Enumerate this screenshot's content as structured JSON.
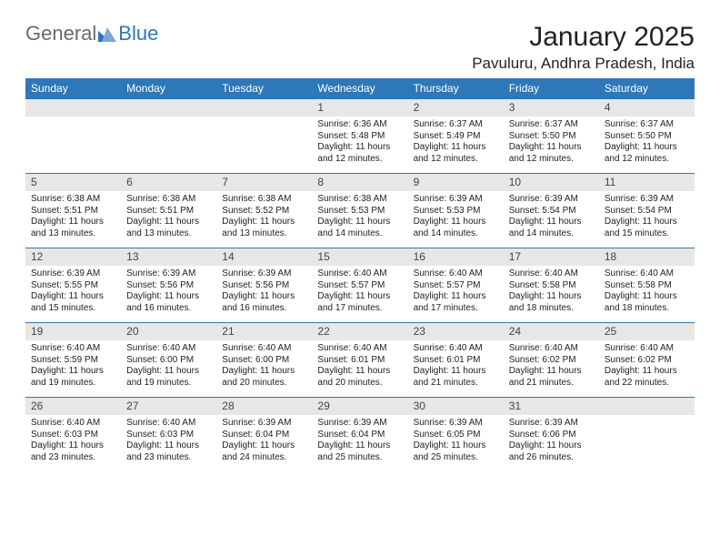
{
  "brand": {
    "general": "General",
    "blue": "Blue"
  },
  "title": "January 2025",
  "location": "Pavuluru, Andhra Pradesh, India",
  "styling": {
    "header_bg": "#2e77b8",
    "header_fg": "#ffffff",
    "daynum_bg": "#e7e7e7",
    "border_color": "#2e77b8",
    "page_bg": "#ffffff",
    "text_color": "#222222",
    "logo_gray": "#6a6a6a",
    "logo_blue": "#2e77b8",
    "month_title_fontsize": 30,
    "location_fontsize": 17,
    "dayheader_fontsize": 12,
    "daynum_fontsize": 12,
    "cell_fontsize": 10
  },
  "day_headers": [
    "Sunday",
    "Monday",
    "Tuesday",
    "Wednesday",
    "Thursday",
    "Friday",
    "Saturday"
  ],
  "weeks": [
    [
      null,
      null,
      null,
      {
        "n": "1",
        "sr": "6:36 AM",
        "ss": "5:48 PM",
        "dl": "11 hours and 12 minutes."
      },
      {
        "n": "2",
        "sr": "6:37 AM",
        "ss": "5:49 PM",
        "dl": "11 hours and 12 minutes."
      },
      {
        "n": "3",
        "sr": "6:37 AM",
        "ss": "5:50 PM",
        "dl": "11 hours and 12 minutes."
      },
      {
        "n": "4",
        "sr": "6:37 AM",
        "ss": "5:50 PM",
        "dl": "11 hours and 12 minutes."
      }
    ],
    [
      {
        "n": "5",
        "sr": "6:38 AM",
        "ss": "5:51 PM",
        "dl": "11 hours and 13 minutes."
      },
      {
        "n": "6",
        "sr": "6:38 AM",
        "ss": "5:51 PM",
        "dl": "11 hours and 13 minutes."
      },
      {
        "n": "7",
        "sr": "6:38 AM",
        "ss": "5:52 PM",
        "dl": "11 hours and 13 minutes."
      },
      {
        "n": "8",
        "sr": "6:38 AM",
        "ss": "5:53 PM",
        "dl": "11 hours and 14 minutes."
      },
      {
        "n": "9",
        "sr": "6:39 AM",
        "ss": "5:53 PM",
        "dl": "11 hours and 14 minutes."
      },
      {
        "n": "10",
        "sr": "6:39 AM",
        "ss": "5:54 PM",
        "dl": "11 hours and 14 minutes."
      },
      {
        "n": "11",
        "sr": "6:39 AM",
        "ss": "5:54 PM",
        "dl": "11 hours and 15 minutes."
      }
    ],
    [
      {
        "n": "12",
        "sr": "6:39 AM",
        "ss": "5:55 PM",
        "dl": "11 hours and 15 minutes."
      },
      {
        "n": "13",
        "sr": "6:39 AM",
        "ss": "5:56 PM",
        "dl": "11 hours and 16 minutes."
      },
      {
        "n": "14",
        "sr": "6:39 AM",
        "ss": "5:56 PM",
        "dl": "11 hours and 16 minutes."
      },
      {
        "n": "15",
        "sr": "6:40 AM",
        "ss": "5:57 PM",
        "dl": "11 hours and 17 minutes."
      },
      {
        "n": "16",
        "sr": "6:40 AM",
        "ss": "5:57 PM",
        "dl": "11 hours and 17 minutes."
      },
      {
        "n": "17",
        "sr": "6:40 AM",
        "ss": "5:58 PM",
        "dl": "11 hours and 18 minutes."
      },
      {
        "n": "18",
        "sr": "6:40 AM",
        "ss": "5:58 PM",
        "dl": "11 hours and 18 minutes."
      }
    ],
    [
      {
        "n": "19",
        "sr": "6:40 AM",
        "ss": "5:59 PM",
        "dl": "11 hours and 19 minutes."
      },
      {
        "n": "20",
        "sr": "6:40 AM",
        "ss": "6:00 PM",
        "dl": "11 hours and 19 minutes."
      },
      {
        "n": "21",
        "sr": "6:40 AM",
        "ss": "6:00 PM",
        "dl": "11 hours and 20 minutes."
      },
      {
        "n": "22",
        "sr": "6:40 AM",
        "ss": "6:01 PM",
        "dl": "11 hours and 20 minutes."
      },
      {
        "n": "23",
        "sr": "6:40 AM",
        "ss": "6:01 PM",
        "dl": "11 hours and 21 minutes."
      },
      {
        "n": "24",
        "sr": "6:40 AM",
        "ss": "6:02 PM",
        "dl": "11 hours and 21 minutes."
      },
      {
        "n": "25",
        "sr": "6:40 AM",
        "ss": "6:02 PM",
        "dl": "11 hours and 22 minutes."
      }
    ],
    [
      {
        "n": "26",
        "sr": "6:40 AM",
        "ss": "6:03 PM",
        "dl": "11 hours and 23 minutes."
      },
      {
        "n": "27",
        "sr": "6:40 AM",
        "ss": "6:03 PM",
        "dl": "11 hours and 23 minutes."
      },
      {
        "n": "28",
        "sr": "6:39 AM",
        "ss": "6:04 PM",
        "dl": "11 hours and 24 minutes."
      },
      {
        "n": "29",
        "sr": "6:39 AM",
        "ss": "6:04 PM",
        "dl": "11 hours and 25 minutes."
      },
      {
        "n": "30",
        "sr": "6:39 AM",
        "ss": "6:05 PM",
        "dl": "11 hours and 25 minutes."
      },
      {
        "n": "31",
        "sr": "6:39 AM",
        "ss": "6:06 PM",
        "dl": "11 hours and 26 minutes."
      },
      null
    ]
  ],
  "labels": {
    "sunrise": "Sunrise:",
    "sunset": "Sunset:",
    "daylight": "Daylight:"
  }
}
